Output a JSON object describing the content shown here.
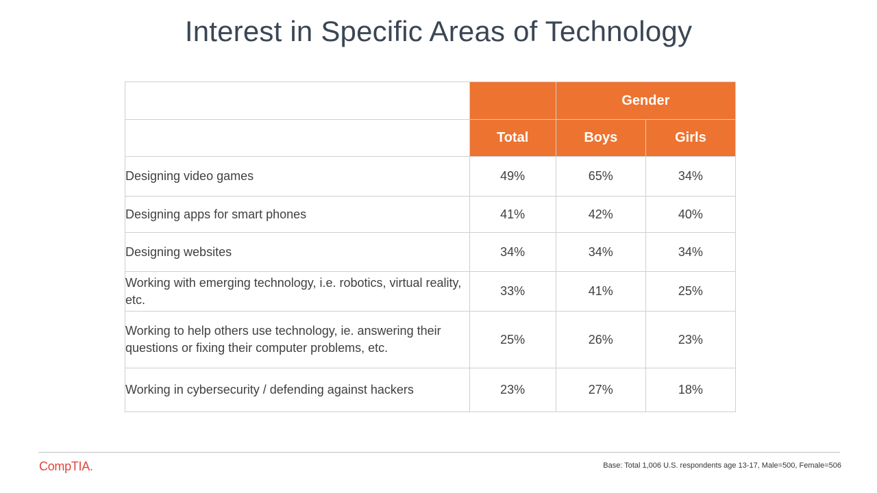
{
  "title": "Interest in Specific Areas of Technology",
  "table": {
    "group_header": "Gender",
    "columns": [
      "Total",
      "Boys",
      "Girls"
    ],
    "rows": [
      {
        "label": "Designing video games",
        "total": "49%",
        "boys": "65%",
        "girls": "34%"
      },
      {
        "label": "Designing apps for smart phones",
        "total": "41%",
        "boys": "42%",
        "girls": "40%"
      },
      {
        "label": "Designing websites",
        "total": "34%",
        "boys": "34%",
        "girls": "34%"
      },
      {
        "label": "Working with emerging technology, i.e. robotics, virtual reality, etc.",
        "total": "33%",
        "boys": "41%",
        "girls": "25%"
      },
      {
        "label": "Working to help others use technology, ie. answering their questions or fixing their computer problems, etc.",
        "total": "25%",
        "boys": "26%",
        "girls": "23%"
      },
      {
        "label": "Working in cybersecurity / defending against hackers",
        "total": "23%",
        "boys": "27%",
        "girls": "18%"
      }
    ]
  },
  "footer": {
    "logo": "CompTIA.",
    "base_note": "Base: Total 1,006 U.S. respondents age 13-17, Male=500, Female=506"
  },
  "colors": {
    "header_fill": "#ed7330",
    "logo": "#e2453b"
  }
}
